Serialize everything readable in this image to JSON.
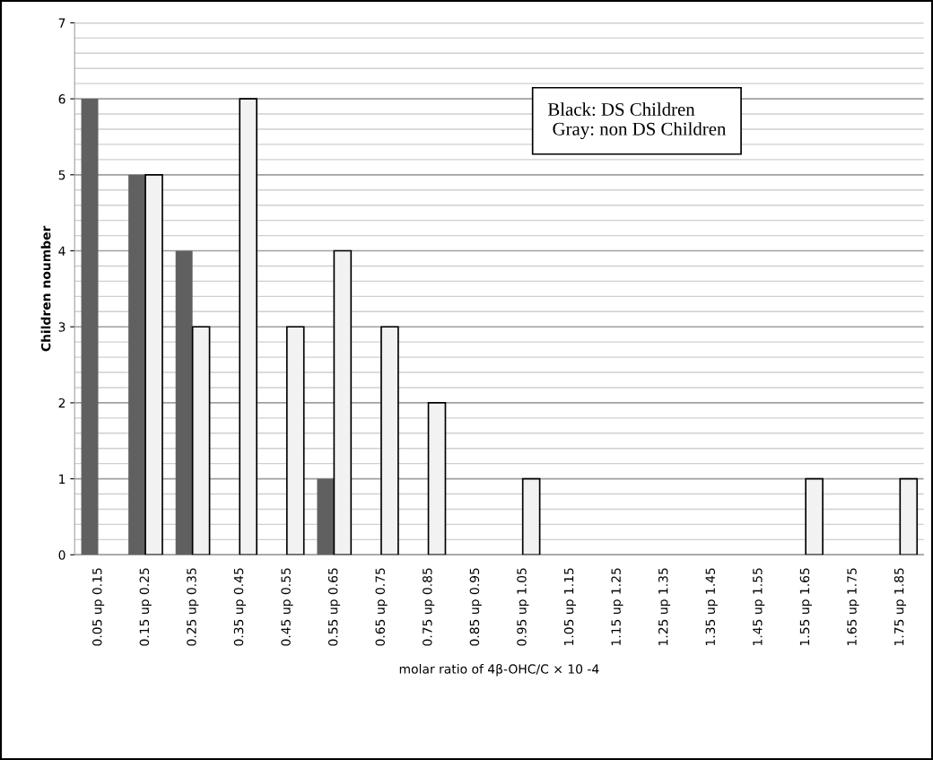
{
  "chart_data": {
    "type": "bar",
    "xlabel": "molar ratio of 4β-OHC/C × 10 -4",
    "ylabel": "Children noumber",
    "categories": [
      "0.05 up 0.15",
      "0.15 up 0.25",
      "0.25 up 0.35",
      "0.35 up 0.45",
      "0.45 up 0.55",
      "0.55 up 0.65",
      "0.65 up 0.75",
      "0.75 up 0.85",
      "0.85 up 0.95",
      "0.95 up 1.05",
      "1.05 up 1.15",
      "1.15 up 1.25",
      "1.25 up 1.35",
      "1.35 up 1.45",
      "1.45 up 1.55",
      "1.55 up 1.65",
      "1.65 up 1.75",
      "1.75 up 1.85"
    ],
    "series": [
      {
        "color": "#606060",
        "values": [
          6,
          5,
          4,
          0,
          0,
          1,
          0,
          0,
          0,
          0,
          0,
          0,
          0,
          0,
          0,
          0,
          0,
          0
        ]
      },
      {
        "color": "#f2f2f2",
        "values": [
          0,
          5,
          3,
          6,
          3,
          4,
          3,
          2,
          0,
          1,
          0,
          0,
          0,
          0,
          0,
          1,
          0,
          1
        ]
      }
    ],
    "ylim": [
      0,
      7
    ],
    "yticks": [
      0,
      1,
      2,
      3,
      4,
      5,
      6,
      7
    ],
    "grid": "y",
    "annotations": [
      "Black: DS Children",
      " Gray: non DS Children"
    ]
  }
}
